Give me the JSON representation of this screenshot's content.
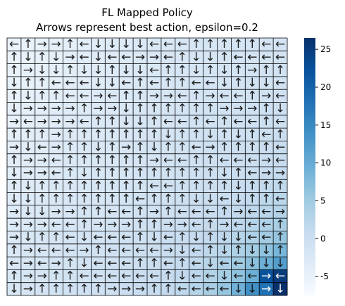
{
  "chart_data": {
    "type": "heatmap",
    "title": "FL Mapped Policy",
    "subtitle": "Arrows represent best action, epsilon=0.2",
    "xlabel": "",
    "ylabel": "",
    "grid": true,
    "legend": "colorbar-right",
    "colormap": "Blues",
    "colorbar_range": [
      -7.5,
      26.5
    ],
    "colorbar_ticks": [
      -5,
      0,
      5,
      10,
      15,
      20,
      25
    ],
    "arrow_glyphs": {
      "U": "↑",
      "D": "↓",
      "L": "←",
      "R": "→"
    },
    "rows": 20,
    "cols": 20,
    "actions": [
      "LURRULDDDDLLLUUUUULL",
      "UDUDRLDLLRRLUDDULLLL",
      "URDDUDDUDDLUUDUDURUU",
      "DUULLLDDLULUULLDUDDL",
      "UDUULLRLUURRLURLLURL",
      "DRRRRURRDUUUUUURRRUD",
      "RLRRRLUUDDULLULULLUL",
      "UUURUUUUUUUDUUDUDULU",
      "RDLRUUDURUDUULRUUUUL",
      "URRLUUUUUURLLUULLLRL",
      "DRRLUDUUUUUUUUUDULRR",
      "UDUUUUUUUULLUUUUDUUU",
      "DDUUUUUUULUUUDDLDUUL",
      "RDDRRUULLURULLLURLLR",
      "RRRLLURRRUURRLURLLLU",
      "RDUULDLLLUDLUDUDDLLU",
      "URLLLRULLLLRDLUDUDDU",
      "LRLRUDLLLUULULDLLDDD",
      "URRUULLLLLLUDLLDLLRL",
      "DRUUUUURRRUULLLLDDRD"
    ],
    "values": [
      [
        -5.4,
        -5.2,
        -5.0,
        -4.6,
        -4.2,
        -4.0,
        -3.6,
        -3.2,
        -3.0,
        -2.8,
        -2.6,
        -2.4,
        -2.2,
        -2.0,
        -1.9,
        -1.7,
        -1.6,
        -1.5,
        -1.5,
        -1.4
      ],
      [
        -5.3,
        -5.1,
        -4.8,
        -4.5,
        -4.1,
        -3.8,
        -3.5,
        -3.2,
        -2.9,
        -2.7,
        -2.5,
        -2.3,
        -2.1,
        -1.9,
        -1.8,
        -1.6,
        -1.5,
        -1.4,
        -1.3,
        -1.2
      ],
      [
        -5.2,
        -5.0,
        -4.6,
        -4.3,
        -4.0,
        -3.7,
        -3.4,
        -3.1,
        -2.8,
        -2.6,
        -2.4,
        -2.2,
        -2.0,
        -1.8,
        -1.6,
        -1.5,
        -1.3,
        -1.2,
        -1.1,
        -1.0
      ],
      [
        -5.0,
        -4.8,
        -4.5,
        -4.2,
        -3.9,
        -3.6,
        -3.3,
        -3.0,
        -2.7,
        -2.5,
        -2.2,
        -2.0,
        -1.8,
        -1.7,
        -1.5,
        -1.3,
        -1.2,
        -1.0,
        -0.9,
        -0.8
      ],
      [
        -4.9,
        -4.6,
        -4.3,
        -4.0,
        -3.7,
        -3.4,
        -3.1,
        -2.8,
        -2.6,
        -2.3,
        -2.1,
        -1.9,
        -1.7,
        -1.5,
        -1.3,
        -1.1,
        -1.0,
        -0.8,
        -0.7,
        -0.6
      ],
      [
        -4.7,
        -4.4,
        -4.1,
        -3.8,
        -3.5,
        -3.2,
        -3.0,
        -2.7,
        -2.4,
        -2.2,
        -2.0,
        -1.7,
        -1.5,
        -1.3,
        -1.1,
        -0.9,
        -0.8,
        -0.6,
        -0.5,
        -0.4
      ],
      [
        -4.5,
        -4.2,
        -3.9,
        -3.6,
        -3.3,
        -3.1,
        -2.8,
        -2.5,
        -2.3,
        -2.0,
        -1.8,
        -1.6,
        -1.4,
        -1.2,
        -1.0,
        -0.8,
        -0.6,
        -0.4,
        -0.3,
        -0.2
      ],
      [
        -4.3,
        -4.0,
        -3.7,
        -3.4,
        -3.2,
        -2.9,
        -2.6,
        -2.4,
        -2.1,
        -1.9,
        -1.7,
        -1.4,
        -1.2,
        -1.0,
        -0.8,
        -0.6,
        -0.4,
        -0.2,
        0.0,
        0.1
      ],
      [
        -4.1,
        -3.8,
        -3.5,
        -3.3,
        -3.0,
        -2.7,
        -2.5,
        -2.2,
        -2.0,
        -1.7,
        -1.5,
        -1.3,
        -1.1,
        -0.8,
        -0.6,
        -0.4,
        -0.2,
        0.0,
        0.2,
        0.4
      ],
      [
        -3.9,
        -3.6,
        -3.4,
        -3.1,
        -2.8,
        -2.6,
        -2.3,
        -2.1,
        -1.8,
        -1.6,
        -1.4,
        -1.1,
        -0.9,
        -0.7,
        -0.4,
        -0.2,
        0.0,
        0.3,
        0.5,
        0.7
      ],
      [
        -3.7,
        -3.4,
        -3.2,
        -2.9,
        -2.6,
        -2.4,
        -2.2,
        -1.9,
        -1.7,
        -1.4,
        -1.2,
        -1.0,
        -0.7,
        -0.5,
        -0.2,
        0.0,
        0.3,
        0.6,
        0.9,
        1.1
      ],
      [
        -3.5,
        -3.2,
        -3.0,
        -2.7,
        -2.5,
        -2.2,
        -2.0,
        -1.7,
        -1.5,
        -1.3,
        -1.0,
        -0.8,
        -0.5,
        -0.3,
        0.0,
        0.3,
        0.6,
        0.9,
        1.3,
        1.6
      ],
      [
        -3.3,
        -3.0,
        -2.8,
        -2.5,
        -2.3,
        -2.0,
        -1.8,
        -1.6,
        -1.3,
        -1.1,
        -0.8,
        -0.6,
        -0.3,
        0.0,
        0.3,
        0.6,
        1.0,
        1.4,
        1.8,
        2.3
      ],
      [
        -3.1,
        -2.8,
        -2.6,
        -2.3,
        -2.1,
        -1.8,
        -1.6,
        -1.4,
        -1.1,
        -0.9,
        -0.6,
        -0.4,
        -0.1,
        0.2,
        0.6,
        1.0,
        1.4,
        1.9,
        2.5,
        3.1
      ],
      [
        -2.9,
        -2.6,
        -2.4,
        -2.1,
        -1.9,
        -1.7,
        -1.4,
        -1.2,
        -0.9,
        -0.7,
        -0.4,
        -0.1,
        0.2,
        0.5,
        0.9,
        1.4,
        1.9,
        2.6,
        3.4,
        4.3
      ],
      [
        -2.7,
        -2.4,
        -2.2,
        -1.9,
        -1.7,
        -1.5,
        -1.2,
        -1.0,
        -0.7,
        -0.5,
        -0.2,
        0.1,
        0.4,
        0.8,
        1.3,
        1.9,
        2.6,
        3.5,
        4.7,
        6.0
      ],
      [
        -2.5,
        -2.2,
        -2.0,
        -1.7,
        -1.5,
        -1.3,
        -1.0,
        -0.8,
        -0.5,
        -0.2,
        0.0,
        0.4,
        0.7,
        1.2,
        1.8,
        2.5,
        3.5,
        4.8,
        6.5,
        8.5
      ],
      [
        -2.3,
        -2.0,
        -1.8,
        -1.5,
        -1.3,
        -1.1,
        -0.8,
        -0.6,
        -0.3,
        0.0,
        0.3,
        0.6,
        1.1,
        1.6,
        2.4,
        3.4,
        4.8,
        6.8,
        9.5,
        12.0
      ],
      [
        -2.1,
        -1.8,
        -1.6,
        -1.3,
        -1.1,
        -0.9,
        -0.6,
        -0.4,
        -0.1,
        0.2,
        0.5,
        0.9,
        1.4,
        2.1,
        3.1,
        4.5,
        6.5,
        9.5,
        22.0,
        25.0
      ],
      [
        -1.9,
        -1.6,
        -1.4,
        -1.1,
        -0.9,
        -0.7,
        -0.4,
        -0.2,
        0.1,
        0.4,
        0.8,
        1.2,
        1.8,
        2.7,
        4.0,
        6.0,
        9.0,
        14.0,
        18.0,
        26.5
      ]
    ]
  }
}
